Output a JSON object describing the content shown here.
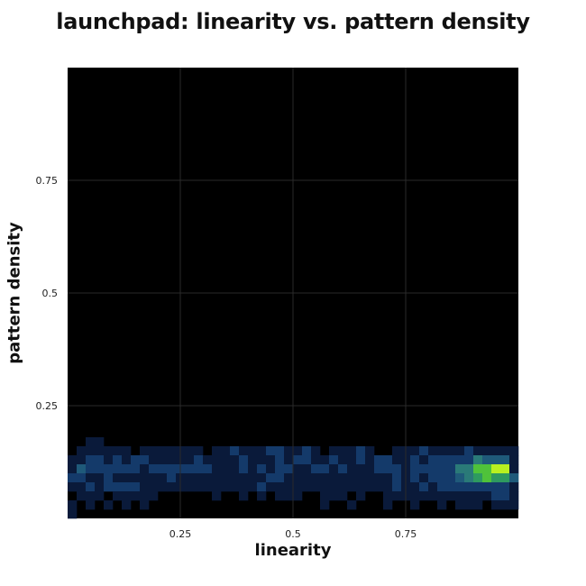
{
  "chart_data": {
    "type": "heatmap",
    "title": "launchpad: linearity vs. pattern density",
    "xlabel": "linearity",
    "ylabel": "pattern density",
    "xlim": [
      0,
      1
    ],
    "ylim": [
      0,
      1
    ],
    "xticks": [
      {
        "value": 0.25,
        "label": "0.25"
      },
      {
        "value": 0.5,
        "label": "0.5"
      },
      {
        "value": 0.75,
        "label": "0.75"
      }
    ],
    "yticks": [
      {
        "value": 0.25,
        "label": "0.25"
      },
      {
        "value": 0.5,
        "label": "0.5"
      },
      {
        "value": 0.75,
        "label": "0.75"
      }
    ],
    "grid": true,
    "background_color": "#000000",
    "grid_color": "#2a2a2a",
    "colormap": [
      "#0a1a3a",
      "#143a6a",
      "#1f5a7a",
      "#2a7a78",
      "#2e9a60",
      "#4fc23a",
      "#b8f020",
      "#f4ff3a"
    ],
    "bin_size": 0.02,
    "y_row_starts": [
      0.0,
      0.02,
      0.04,
      0.06,
      0.08,
      0.1,
      0.12,
      0.14,
      0.16
    ],
    "x_col_starts_note": "columns start at 0.00 and step by 0.02 up to 0.98",
    "rows": [
      {
        "y": 0.16,
        "cells": "00110000000000000000000000000000000000000000000000"
      },
      {
        "y": 0.14,
        "cells": "01111110111111101121112211210111210011121111211111"
      },
      {
        "y": 0.12,
        "cells": "11221212211111211112111212211211212211212222243331"
      },
      {
        "y": 0.1,
        "cells": "13222222122222221112121221122121112221222224466771"
      },
      {
        "y": 0.08,
        "cells": "22112111111211111111112211111111111121212223456553"
      },
      {
        "y": 0.06,
        "cells": "11212222111111111111121111111111111121121222222221"
      },
      {
        "y": 0.04,
        "cells": "01110111110000001001010111001110100111111111111221"
      },
      {
        "y": 0.02,
        "cells": "10101010100000000000000000001001000100100101110111"
      },
      {
        "y": 0.0,
        "cells": "10000000000000000000000000000000000000000000000000"
      }
    ]
  }
}
